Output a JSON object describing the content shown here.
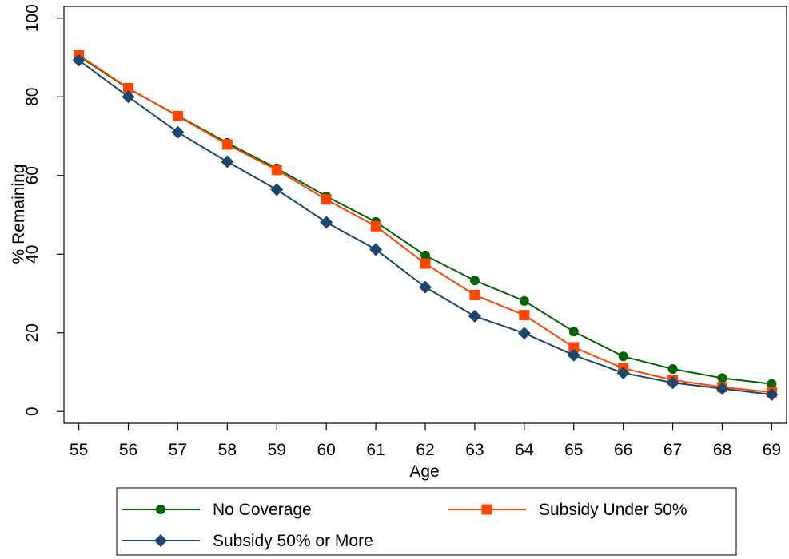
{
  "chart_data": {
    "type": "line",
    "title": "",
    "xlabel": "Age",
    "ylabel": "% Remaining",
    "x": [
      55,
      56,
      57,
      58,
      59,
      60,
      61,
      62,
      63,
      64,
      65,
      66,
      67,
      68,
      69
    ],
    "xlim": [
      54.7,
      69.3
    ],
    "ylim": [
      -3,
      103
    ],
    "yticks": [
      0,
      20,
      40,
      60,
      80,
      100
    ],
    "grid": false,
    "legend_position": "bottom",
    "series": [
      {
        "name": "No Coverage",
        "color": "#006400",
        "marker": "circle",
        "values": [
          90.3,
          82.1,
          75.2,
          68.3,
          61.8,
          54.7,
          48.2,
          39.7,
          33.3,
          28.1,
          20.3,
          14.0,
          10.8,
          8.5,
          7.0
        ]
      },
      {
        "name": "Subsidy Under 50%",
        "color": "#ff4500",
        "marker": "square",
        "values": [
          90.6,
          82.2,
          75.1,
          67.9,
          61.4,
          53.9,
          47.1,
          37.6,
          29.6,
          24.5,
          16.3,
          11.0,
          8.0,
          6.2,
          4.9
        ]
      },
      {
        "name": "Subsidy 50% or More",
        "color": "#1a476f",
        "marker": "diamond",
        "values": [
          89.3,
          80.0,
          71.0,
          63.5,
          56.4,
          48.1,
          41.2,
          31.6,
          24.2,
          19.9,
          14.3,
          9.8,
          7.3,
          5.8,
          4.3
        ]
      }
    ]
  }
}
